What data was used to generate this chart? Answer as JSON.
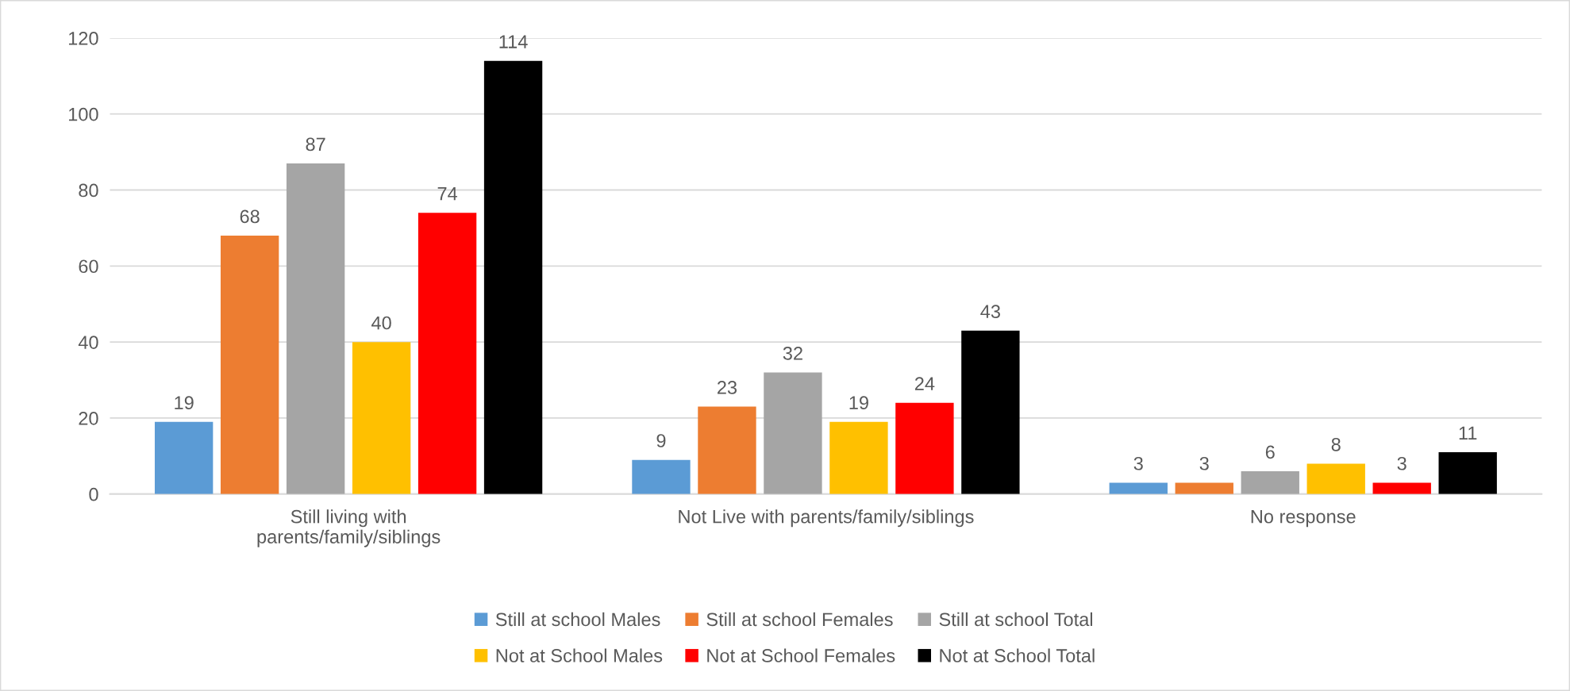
{
  "chart_data": {
    "type": "bar",
    "categories": [
      "Still living with\nparents/family/siblings",
      "Not Live with parents/family/siblings",
      "No response"
    ],
    "series": [
      {
        "name": "Still at school Males",
        "color": "#5b9bd5",
        "values": [
          19,
          9,
          3
        ]
      },
      {
        "name": "Still at school Females",
        "color": "#ed7d31",
        "values": [
          68,
          23,
          3
        ]
      },
      {
        "name": "Still at school Total",
        "color": "#a5a5a5",
        "values": [
          87,
          32,
          6
        ]
      },
      {
        "name": "Not at School Males",
        "color": "#ffc000",
        "values": [
          40,
          19,
          8
        ]
      },
      {
        "name": "Not at School Females",
        "color": "#ff0000",
        "values": [
          74,
          24,
          3
        ]
      },
      {
        "name": "Not at School Total",
        "color": "#000000",
        "values": [
          114,
          43,
          11
        ]
      }
    ],
    "ylim": [
      0,
      120
    ],
    "yticks": [
      0,
      20,
      40,
      60,
      80,
      100,
      120
    ],
    "grid": "y",
    "legend": "bottom",
    "data_labels": true
  }
}
